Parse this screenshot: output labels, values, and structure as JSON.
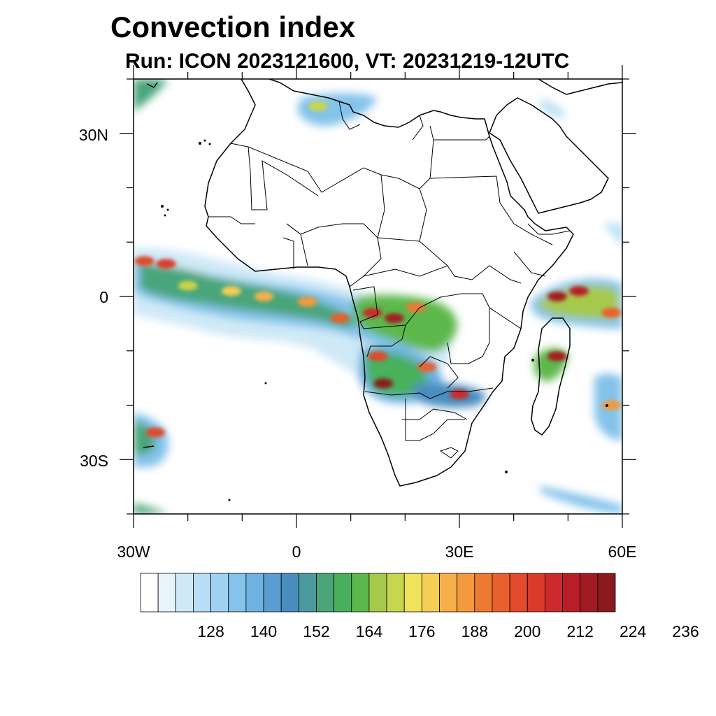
{
  "header": {
    "title": "Convection index",
    "subtitle": "Run: ICON 2023121600,  VT: 20231219-12UTC"
  },
  "axes": {
    "lat_labels": [
      "30N",
      "0",
      "30S"
    ],
    "lon_labels": [
      "30W",
      "0",
      "30E",
      "60E"
    ],
    "lon_range": [
      -30,
      60
    ],
    "lat_range": [
      -40,
      40
    ]
  },
  "colorbar": {
    "labels": [
      "128",
      "140",
      "152",
      "164",
      "176",
      "188",
      "200",
      "212",
      "224",
      "236"
    ],
    "colors": [
      "#ffffff",
      "#e8f4fb",
      "#cfe9f7",
      "#b7def4",
      "#9dd3f1",
      "#84c3ea",
      "#6fb2e2",
      "#5a9dd3",
      "#4a8dbf",
      "#4b9aa0",
      "#4aa57a",
      "#48b05c",
      "#5db84c",
      "#a6c94c",
      "#c8d54e",
      "#eee35a",
      "#f6cd55",
      "#f5b04c",
      "#f39a3e",
      "#ee7a32",
      "#e8602d",
      "#e14a2b",
      "#d93a2c",
      "#cc2a2b",
      "#b91e27",
      "#a21b22",
      "#8a1a1d"
    ],
    "value_min": 116,
    "value_step": 4
  },
  "field": {
    "variable": "Convection index",
    "cells": [
      {
        "lon": -28,
        "lat": 6.5,
        "value": 196
      },
      {
        "lon": -24,
        "lat": 6,
        "value": 200
      },
      {
        "lon": -20,
        "lat": 2,
        "value": 168
      },
      {
        "lon": -12,
        "lat": 1,
        "value": 176
      },
      {
        "lon": -6,
        "lat": 0,
        "value": 180
      },
      {
        "lon": 2,
        "lat": -1,
        "value": 184
      },
      {
        "lon": 8,
        "lat": -4,
        "value": 192
      },
      {
        "lon": 14,
        "lat": -3,
        "value": 204
      },
      {
        "lon": 18,
        "lat": -4,
        "value": 212
      },
      {
        "lon": 22,
        "lat": -2,
        "value": 188
      },
      {
        "lon": 15,
        "lat": -11,
        "value": 196
      },
      {
        "lon": 16,
        "lat": -16,
        "value": 220
      },
      {
        "lon": 24,
        "lat": -13,
        "value": 192
      },
      {
        "lon": 30,
        "lat": -18,
        "value": 204
      },
      {
        "lon": 48,
        "lat": 0,
        "value": 212
      },
      {
        "lon": 52,
        "lat": 1,
        "value": 208
      },
      {
        "lon": 58,
        "lat": -3,
        "value": 192
      },
      {
        "lon": 48,
        "lat": -11,
        "value": 212
      },
      {
        "lon": 58,
        "lat": -20,
        "value": 184
      },
      {
        "lon": -26,
        "lat": -25,
        "value": 196
      },
      {
        "lon": 4,
        "lat": 35,
        "value": 168
      }
    ]
  }
}
